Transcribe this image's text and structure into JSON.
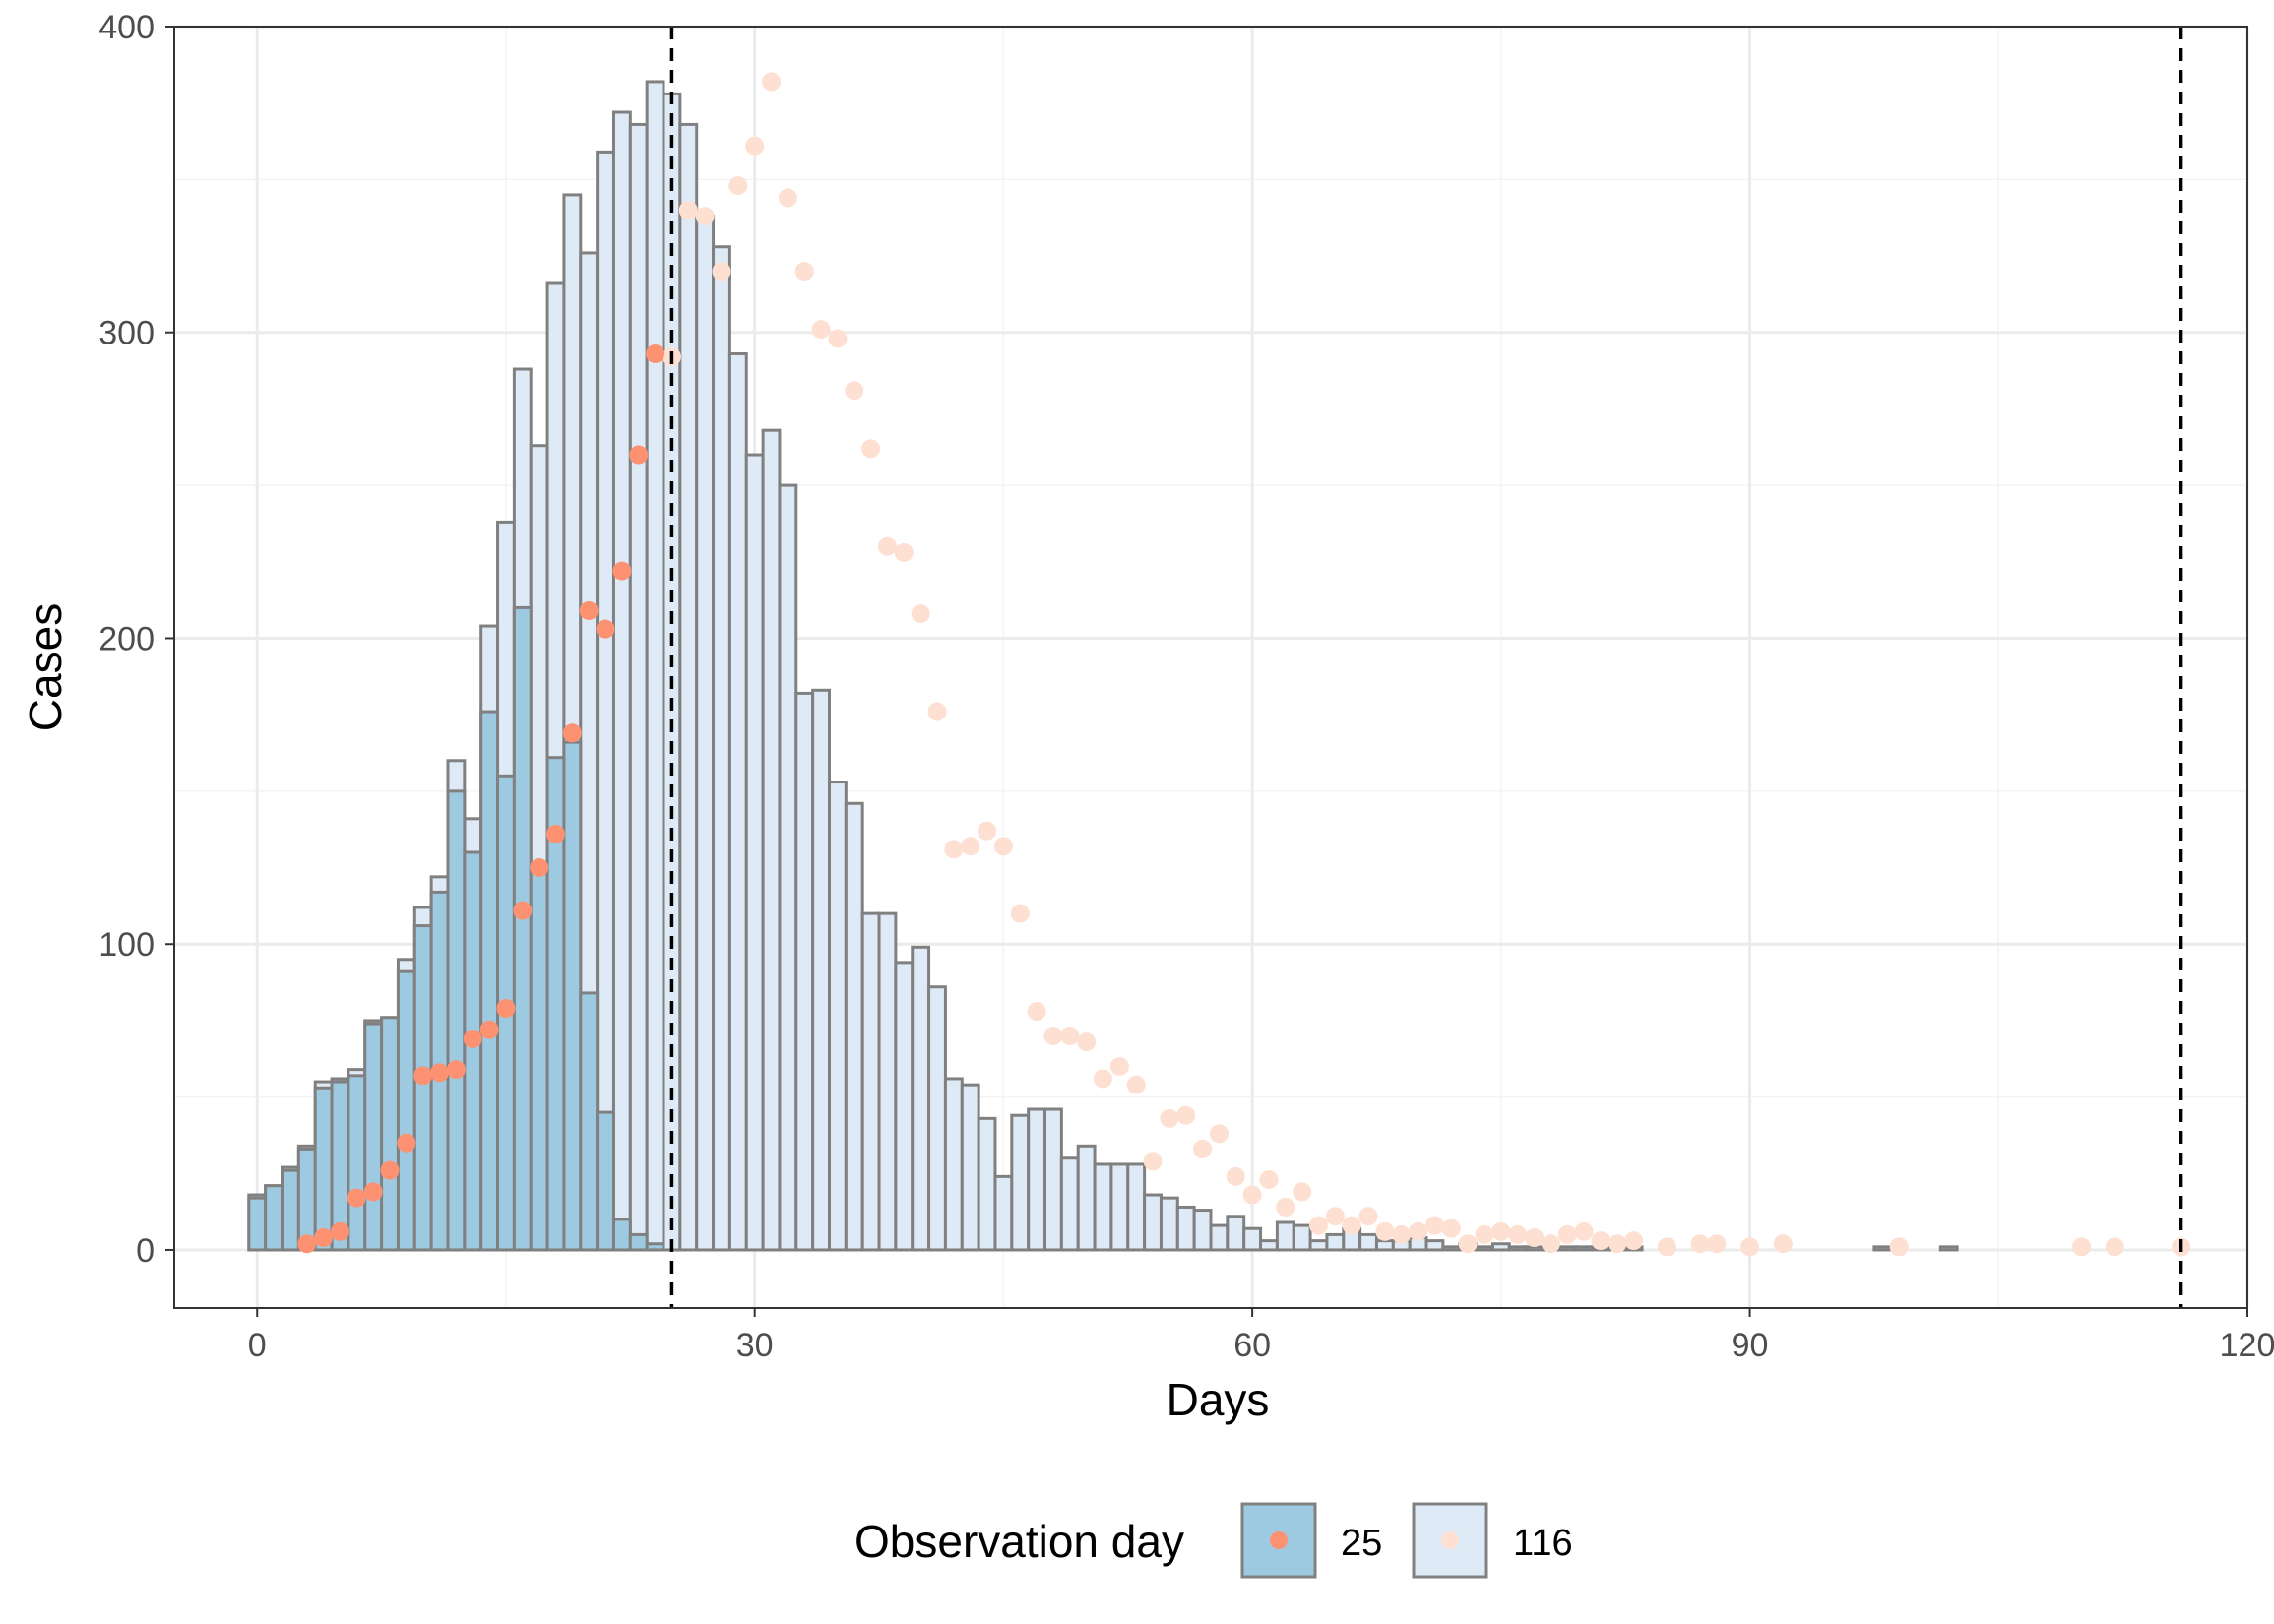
{
  "chart_data": {
    "type": "bar",
    "xlabel": "Days",
    "ylabel": "Cases",
    "xlim": [
      -5,
      120
    ],
    "ylim": [
      -19,
      400
    ],
    "x_ticks": [
      0,
      30,
      60,
      90,
      120
    ],
    "y_ticks": [
      0,
      100,
      200,
      300,
      400
    ],
    "x_tick_labels": [
      "0",
      "30",
      "60",
      "90",
      "120"
    ],
    "y_tick_labels": [
      "0",
      "100",
      "200",
      "300",
      "400"
    ],
    "grid": true,
    "legend_position": "bottom",
    "legend": {
      "title": "Observation day",
      "entries": [
        {
          "label": "25",
          "bar_color": "#9ecae1",
          "point_color": "#fc9272"
        },
        {
          "label": "116",
          "bar_color": "#deebf7",
          "point_color": "#fee0d2"
        }
      ]
    },
    "vlines": [
      25,
      116
    ],
    "bar_outline_color": "#808080",
    "series": [
      {
        "name": "25",
        "bar_color": "#9ecae1",
        "point_color": "#fc9272",
        "bars_x": [
          0,
          1,
          2,
          3,
          4,
          5,
          6,
          7,
          8,
          9,
          10,
          11,
          12,
          13,
          14,
          15,
          16,
          17,
          18,
          19,
          20,
          21,
          22,
          23,
          24
        ],
        "bars_y": [
          17,
          21,
          26,
          33,
          53,
          55,
          57,
          74,
          76,
          91,
          106,
          117,
          150,
          130,
          176,
          155,
          210,
          125,
          161,
          166,
          84,
          45,
          10,
          5,
          2
        ],
        "points_x": [
          3,
          4,
          5,
          6,
          7,
          8,
          9,
          10,
          11,
          12,
          13,
          14,
          15,
          16,
          17,
          18,
          19,
          20,
          21,
          22,
          23,
          24
        ],
        "points_y": [
          2,
          4,
          6,
          17,
          19,
          26,
          35,
          57,
          58,
          59,
          69,
          72,
          79,
          111,
          125,
          136,
          169,
          209,
          203,
          222,
          260,
          293
        ]
      },
      {
        "name": "116",
        "bar_color": "#deebf7",
        "point_color": "#fee0d2",
        "bars_x": [
          0,
          1,
          2,
          3,
          4,
          5,
          6,
          7,
          8,
          9,
          10,
          11,
          12,
          13,
          14,
          15,
          16,
          17,
          18,
          19,
          20,
          21,
          22,
          23,
          24,
          25,
          26,
          27,
          28,
          29,
          30,
          31,
          32,
          33,
          34,
          35,
          36,
          37,
          38,
          39,
          40,
          41,
          42,
          43,
          44,
          45,
          46,
          47,
          48,
          49,
          50,
          51,
          52,
          53,
          54,
          55,
          56,
          57,
          58,
          59,
          60,
          61,
          62,
          63,
          64,
          65,
          66,
          67,
          68,
          69,
          70,
          71,
          72,
          73,
          74,
          75,
          76,
          77,
          78,
          79,
          80,
          81,
          82,
          83,
          98,
          102
        ],
        "bars_y": [
          18,
          21,
          27,
          34,
          55,
          56,
          59,
          75,
          76,
          95,
          112,
          122,
          160,
          141,
          204,
          238,
          288,
          263,
          316,
          345,
          326,
          359,
          372,
          368,
          382,
          378,
          368,
          338,
          328,
          293,
          260,
          268,
          250,
          182,
          183,
          153,
          146,
          110,
          110,
          94,
          99,
          86,
          56,
          54,
          43,
          24,
          44,
          46,
          46,
          30,
          34,
          28,
          28,
          28,
          18,
          17,
          14,
          13,
          8,
          11,
          7,
          3,
          9,
          8,
          3,
          5,
          7,
          5,
          3,
          3,
          4,
          3,
          1,
          2,
          1,
          2,
          1,
          1,
          1,
          1,
          1,
          1,
          1,
          1,
          1,
          1
        ],
        "points_x": [
          25,
          26,
          27,
          28,
          29,
          30,
          31,
          32,
          33,
          34,
          35,
          36,
          37,
          38,
          39,
          40,
          41,
          42,
          43,
          44,
          45,
          46,
          47,
          48,
          49,
          50,
          51,
          52,
          53,
          54,
          55,
          56,
          57,
          58,
          59,
          60,
          61,
          62,
          63,
          64,
          65,
          66,
          67,
          68,
          69,
          70,
          71,
          72,
          73,
          74,
          75,
          76,
          77,
          78,
          79,
          80,
          81,
          82,
          83,
          85,
          87,
          88,
          90,
          92,
          99,
          110,
          112,
          116
        ],
        "points_y": [
          292,
          340,
          338,
          320,
          348,
          361,
          382,
          344,
          320,
          301,
          298,
          281,
          262,
          230,
          228,
          208,
          176,
          131,
          132,
          137,
          132,
          110,
          78,
          70,
          70,
          68,
          56,
          60,
          54,
          29,
          43,
          44,
          33,
          38,
          24,
          18,
          23,
          14,
          19,
          8,
          11,
          8,
          11,
          6,
          5,
          6,
          8,
          7,
          2,
          5,
          6,
          5,
          4,
          2,
          5,
          6,
          3,
          2,
          3,
          1,
          2,
          2,
          1,
          2,
          1,
          1,
          1,
          1
        ]
      }
    ]
  }
}
